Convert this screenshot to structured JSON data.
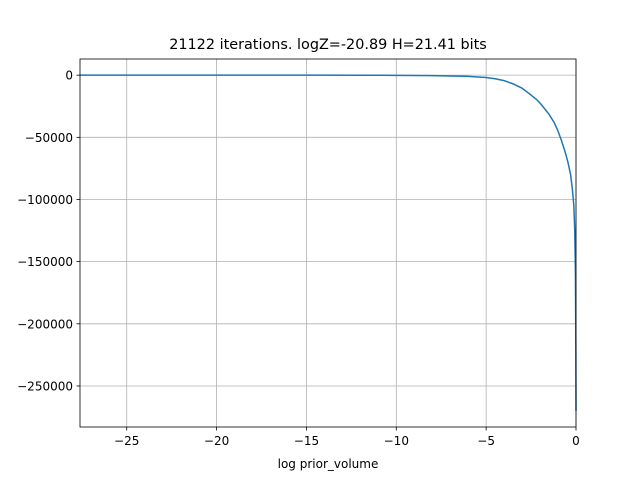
{
  "chart_data": {
    "type": "line",
    "title": "21122 iterations. logZ=-20.89 H=21.41 bits",
    "xlabel": "log prior_volume",
    "ylabel": "",
    "xlim": [
      -27.6,
      0.0
    ],
    "ylim": [
      -283000,
      13000
    ],
    "grid": true,
    "x_ticks": [
      {
        "value": -25,
        "label": "−25"
      },
      {
        "value": -20,
        "label": "−20"
      },
      {
        "value": -15,
        "label": "−15"
      },
      {
        "value": -10,
        "label": "−10"
      },
      {
        "value": -5,
        "label": "−5"
      },
      {
        "value": 0,
        "label": "0"
      }
    ],
    "y_ticks": [
      {
        "value": 0,
        "label": "0"
      },
      {
        "value": -50000,
        "label": "−50000"
      },
      {
        "value": -100000,
        "label": "−100000"
      },
      {
        "value": -150000,
        "label": "−150000"
      },
      {
        "value": -200000,
        "label": "−200000"
      },
      {
        "value": -250000,
        "label": "−250000"
      }
    ],
    "series": [
      {
        "color": "#1f77b4",
        "x": [
          -27.6,
          -25,
          -20,
          -15,
          -12,
          -10,
          -8,
          -7,
          -6,
          -5,
          -4.5,
          -4,
          -3.5,
          -3,
          -2.5,
          -2.2,
          -2,
          -1.8,
          -1.5,
          -1.2,
          -1,
          -0.8,
          -0.6,
          -0.45,
          -0.3,
          -0.2,
          -0.12,
          -0.07,
          -0.03,
          -0.01,
          0
        ],
        "y": [
          0,
          0,
          0,
          0,
          -50,
          -150,
          -400,
          -650,
          -1000,
          -1900,
          -2900,
          -4400,
          -7000,
          -10500,
          -16000,
          -19500,
          -22500,
          -26000,
          -31500,
          -38500,
          -45000,
          -53000,
          -62000,
          -70000,
          -80000,
          -92000,
          -105000,
          -125000,
          -160000,
          -220000,
          -270000
        ]
      }
    ]
  }
}
